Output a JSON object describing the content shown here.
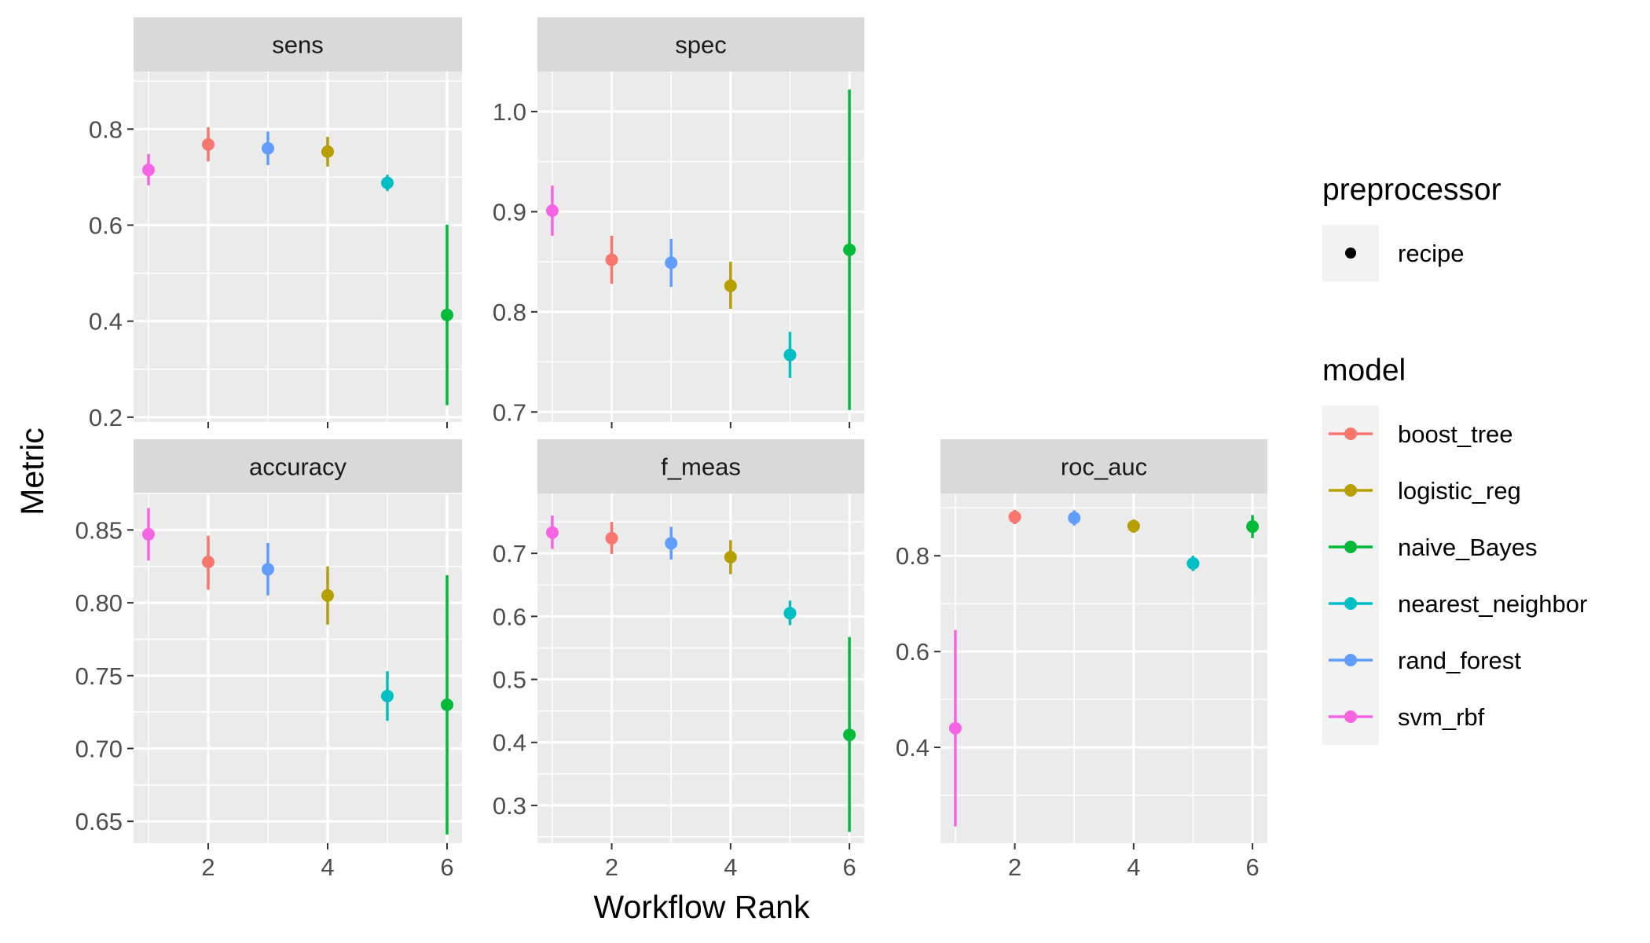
{
  "figure": {
    "xlabel": "Workflow Rank",
    "ylabel": "Metric"
  },
  "legend": {
    "preprocessor_title": "preprocessor",
    "preprocessor_items": [
      {
        "label": "recipe",
        "color": "#000000"
      }
    ],
    "model_title": "model",
    "model_items": [
      {
        "label": "boost_tree",
        "color": "#F8766D"
      },
      {
        "label": "logistic_reg",
        "color": "#B79F00"
      },
      {
        "label": "naive_Bayes",
        "color": "#00BA38"
      },
      {
        "label": "nearest_neighbor",
        "color": "#00BFC4"
      },
      {
        "label": "rand_forest",
        "color": "#619CFF"
      },
      {
        "label": "svm_rbf",
        "color": "#F564E3"
      }
    ]
  },
  "chart_data": [
    {
      "type": "scatter",
      "panel": "sens",
      "xlim": [
        0.75,
        6.25
      ],
      "ylim": [
        0.19,
        0.92
      ],
      "y_ticks": [
        "0.2",
        "0.4",
        "0.6",
        "0.8"
      ],
      "x_ticks": [
        "2",
        "4",
        "6"
      ],
      "points": [
        {
          "rank": 1,
          "model": "svm_rbf",
          "mean": 0.715,
          "lower": 0.683,
          "upper": 0.748
        },
        {
          "rank": 2,
          "model": "boost_tree",
          "mean": 0.768,
          "lower": 0.733,
          "upper": 0.804
        },
        {
          "rank": 3,
          "model": "rand_forest",
          "mean": 0.76,
          "lower": 0.725,
          "upper": 0.795
        },
        {
          "rank": 4,
          "model": "logistic_reg",
          "mean": 0.753,
          "lower": 0.722,
          "upper": 0.784
        },
        {
          "rank": 5,
          "model": "nearest_neighbor",
          "mean": 0.688,
          "lower": 0.671,
          "upper": 0.705
        },
        {
          "rank": 6,
          "model": "naive_Bayes",
          "mean": 0.413,
          "lower": 0.225,
          "upper": 0.601
        }
      ]
    },
    {
      "type": "scatter",
      "panel": "spec",
      "xlim": [
        0.75,
        6.25
      ],
      "ylim": [
        0.69,
        1.04
      ],
      "y_ticks": [
        "0.7",
        "0.8",
        "0.9",
        "1.0"
      ],
      "x_ticks": [
        "2",
        "4",
        "6"
      ],
      "points": [
        {
          "rank": 1,
          "model": "svm_rbf",
          "mean": 0.901,
          "lower": 0.876,
          "upper": 0.926
        },
        {
          "rank": 2,
          "model": "boost_tree",
          "mean": 0.852,
          "lower": 0.828,
          "upper": 0.876
        },
        {
          "rank": 3,
          "model": "rand_forest",
          "mean": 0.849,
          "lower": 0.825,
          "upper": 0.873
        },
        {
          "rank": 4,
          "model": "logistic_reg",
          "mean": 0.826,
          "lower": 0.803,
          "upper": 0.85
        },
        {
          "rank": 5,
          "model": "nearest_neighbor",
          "mean": 0.757,
          "lower": 0.734,
          "upper": 0.78
        },
        {
          "rank": 6,
          "model": "naive_Bayes",
          "mean": 0.862,
          "lower": 0.702,
          "upper": 1.022
        }
      ]
    },
    {
      "type": "scatter",
      "panel": "accuracy",
      "xlim": [
        0.75,
        6.25
      ],
      "ylim": [
        0.635,
        0.875
      ],
      "y_ticks": [
        "0.65",
        "0.70",
        "0.75",
        "0.80",
        "0.85"
      ],
      "x_ticks": [
        "2",
        "4",
        "6"
      ],
      "points": [
        {
          "rank": 1,
          "model": "svm_rbf",
          "mean": 0.847,
          "lower": 0.829,
          "upper": 0.865
        },
        {
          "rank": 2,
          "model": "boost_tree",
          "mean": 0.828,
          "lower": 0.809,
          "upper": 0.846
        },
        {
          "rank": 3,
          "model": "rand_forest",
          "mean": 0.823,
          "lower": 0.805,
          "upper": 0.841
        },
        {
          "rank": 4,
          "model": "logistic_reg",
          "mean": 0.805,
          "lower": 0.785,
          "upper": 0.825
        },
        {
          "rank": 5,
          "model": "nearest_neighbor",
          "mean": 0.736,
          "lower": 0.719,
          "upper": 0.753
        },
        {
          "rank": 6,
          "model": "naive_Bayes",
          "mean": 0.73,
          "lower": 0.641,
          "upper": 0.819
        }
      ]
    },
    {
      "type": "scatter",
      "panel": "f_meas",
      "xlim": [
        0.75,
        6.25
      ],
      "ylim": [
        0.24,
        0.795
      ],
      "y_ticks": [
        "0.3",
        "0.4",
        "0.5",
        "0.6",
        "0.7"
      ],
      "x_ticks": [
        "2",
        "4",
        "6"
      ],
      "points": [
        {
          "rank": 1,
          "model": "svm_rbf",
          "mean": 0.733,
          "lower": 0.707,
          "upper": 0.76
        },
        {
          "rank": 2,
          "model": "boost_tree",
          "mean": 0.724,
          "lower": 0.699,
          "upper": 0.75
        },
        {
          "rank": 3,
          "model": "rand_forest",
          "mean": 0.716,
          "lower": 0.69,
          "upper": 0.742
        },
        {
          "rank": 4,
          "model": "logistic_reg",
          "mean": 0.694,
          "lower": 0.667,
          "upper": 0.721
        },
        {
          "rank": 5,
          "model": "nearest_neighbor",
          "mean": 0.605,
          "lower": 0.586,
          "upper": 0.625
        },
        {
          "rank": 6,
          "model": "naive_Bayes",
          "mean": 0.412,
          "lower": 0.258,
          "upper": 0.567
        }
      ]
    },
    {
      "type": "scatter",
      "panel": "roc_auc",
      "xlim": [
        0.75,
        6.25
      ],
      "ylim": [
        0.2,
        0.93
      ],
      "y_ticks": [
        "0.4",
        "0.6",
        "0.8"
      ],
      "x_ticks": [
        "2",
        "4",
        "6"
      ],
      "points": [
        {
          "rank": 1,
          "model": "svm_rbf",
          "mean": 0.44,
          "lower": 0.235,
          "upper": 0.645
        },
        {
          "rank": 2,
          "model": "boost_tree",
          "mean": 0.881,
          "lower": 0.866,
          "upper": 0.896
        },
        {
          "rank": 3,
          "model": "rand_forest",
          "mean": 0.879,
          "lower": 0.863,
          "upper": 0.895
        },
        {
          "rank": 4,
          "model": "logistic_reg",
          "mean": 0.862,
          "lower": 0.848,
          "upper": 0.876
        },
        {
          "rank": 5,
          "model": "nearest_neighbor",
          "mean": 0.784,
          "lower": 0.768,
          "upper": 0.8
        },
        {
          "rank": 6,
          "model": "naive_Bayes",
          "mean": 0.861,
          "lower": 0.837,
          "upper": 0.885
        }
      ]
    }
  ]
}
